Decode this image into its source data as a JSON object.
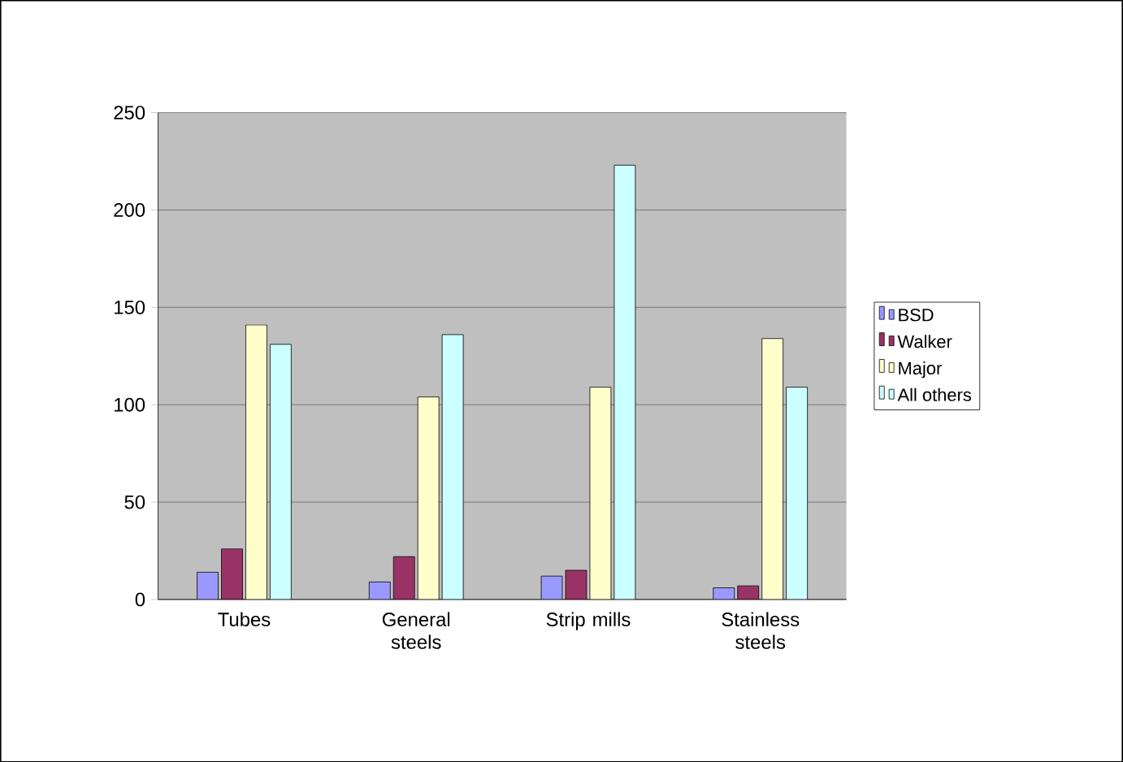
{
  "chart_data": {
    "type": "bar",
    "categories": [
      "Tubes",
      "General steels",
      "Strip mills",
      "Stainless steels"
    ],
    "series": [
      {
        "name": "BSD",
        "color": "#9999ff",
        "values": [
          14,
          9,
          12,
          6
        ]
      },
      {
        "name": "Walker",
        "color": "#993366",
        "values": [
          26,
          22,
          15,
          7
        ]
      },
      {
        "name": "Major",
        "color": "#ffffcc",
        "values": [
          141,
          104,
          109,
          134
        ]
      },
      {
        "name": "All others",
        "color": "#ccffff",
        "values": [
          131,
          136,
          223,
          109
        ]
      }
    ],
    "ylim": [
      0,
      250
    ],
    "yticks": [
      0,
      50,
      100,
      150,
      200,
      250
    ],
    "grid": "y",
    "legend": "right"
  }
}
